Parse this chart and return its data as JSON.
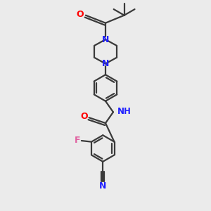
{
  "bg_color": "#ebebeb",
  "bond_color": "#3a3a3a",
  "N_color": "#2020ff",
  "O_color": "#ff0000",
  "F_color": "#e060a0",
  "lw": 1.6,
  "figsize": [
    3.0,
    3.0
  ],
  "dpi": 100,
  "xlim": [
    -2.5,
    2.5
  ],
  "ylim": [
    -5.0,
    4.5
  ]
}
